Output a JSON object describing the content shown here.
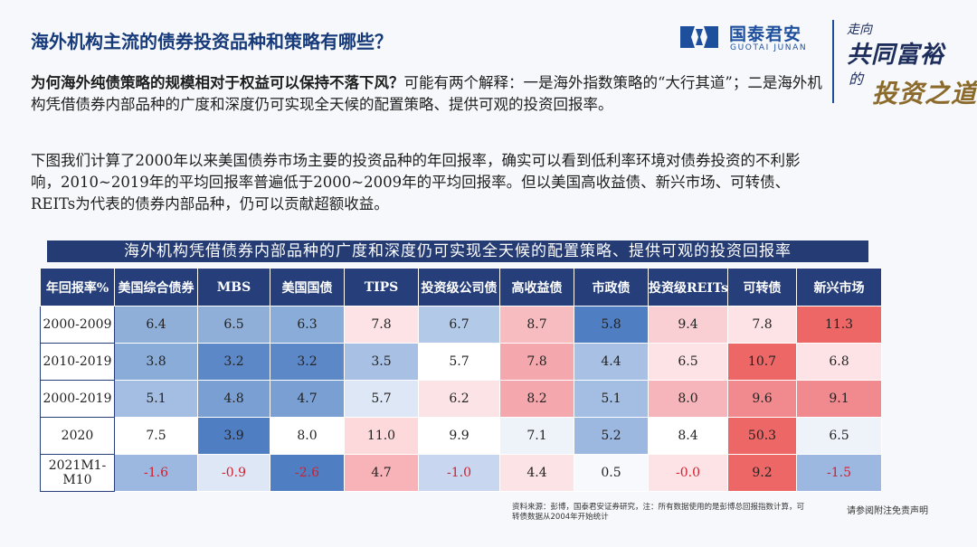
{
  "header": {
    "title": "海外机构主流的债券投资品种和策略有哪些？",
    "logo_cn": "国泰君安",
    "logo_en": "GUOTAI JUNAN",
    "brand_color": "#1e4f9c",
    "slogan": [
      "走向",
      "共同富裕",
      "的",
      "投资之道"
    ]
  },
  "body": {
    "para1_lead": "为何海外纯债策略的规模相对于权益可以保持不落下风？",
    "para1_rest": "可能有两个解释：一是海外指数策略的“大行其道”；二是海外机构凭借债券内部品种的广度和深度仍可实现全天候的配置策略、提供可观的投资回报率。",
    "para2": "下图我们计算了2000年以来美国债券市场主要的投资品种的年回报率，确实可以看到低利率环境对债券投资的不利影响，2010~2019年的平均回报率普遍低于2000~2009年的平均回报率。但以美国高收益债、新兴市场、可转债、REITs为代表的债券内部品种，仍可以贡献超额收益。"
  },
  "table": {
    "banner": "海外机构凭借债券内部品种的广度和深度仍可实现全天候的配置策略、提供可观的投资回报率",
    "headers": [
      "年回报率%",
      "美国综合债券",
      "MBS",
      "美国国债",
      "TIPS",
      "投资级公司债",
      "高收益债",
      "市政债",
      "投资级REITs",
      "可转债",
      "新兴市场"
    ],
    "rows": [
      {
        "label": "2000-2009",
        "values": [
          "6.4",
          "6.5",
          "6.3",
          "7.8",
          "6.7",
          "8.7",
          "5.8",
          "9.4",
          "7.8",
          "11.3"
        ],
        "colors": [
          "#8fafd9",
          "#8fafd9",
          "#8aacd8",
          "#fde3e6",
          "#b3c9e8",
          "#f7bcc0",
          "#4f7fc2",
          "#f9cfd3",
          "#fde3e6",
          "#ee6767"
        ]
      },
      {
        "label": "2010-2019",
        "values": [
          "3.8",
          "3.2",
          "3.2",
          "3.5",
          "5.7",
          "7.8",
          "4.4",
          "6.5",
          "10.7",
          "6.8"
        ],
        "colors": [
          "#8aacd8",
          "#5d88c8",
          "#5d88c8",
          "#a8c0e4",
          "#ffffff",
          "#f4a8ad",
          "#a8c0e4",
          "#fde3e6",
          "#ee6767",
          "#fde3e6"
        ]
      },
      {
        "label": "2000-2019",
        "values": [
          "5.1",
          "4.8",
          "4.7",
          "5.7",
          "6.2",
          "8.2",
          "5.1",
          "8.0",
          "9.6",
          "9.1"
        ],
        "colors": [
          "#a4bde3",
          "#7aa0d3",
          "#7aa0d3",
          "#dde7f5",
          "#fbe3e6",
          "#f4a8ad",
          "#a4bde3",
          "#f6b5ba",
          "#f08a8f",
          "#f08a8f"
        ]
      },
      {
        "label": "2020",
        "values": [
          "7.5",
          "3.9",
          "8.0",
          "11.0",
          "9.9",
          "7.1",
          "5.2",
          "8.4",
          "50.3",
          "6.5"
        ],
        "colors": [
          "#ffffff",
          "#4f7fc2",
          "#ffffff",
          "#fdd9dc",
          "#ffffff",
          "#eef3fa",
          "#9db8e0",
          "#ffffff",
          "#ee6767",
          "#eef3fa"
        ]
      },
      {
        "label": "2021M1-M10",
        "values": [
          "-1.6",
          "-0.9",
          "-2.6",
          "4.7",
          "-1.0",
          "4.4",
          "0.5",
          "-0.0",
          "9.2",
          "-1.5"
        ],
        "colors": [
          "#9db8e0",
          "#dde7f5",
          "#4f7fc2",
          "#f7b3b8",
          "#c8d7ef",
          "#fbe3e6",
          "#f7f9fc",
          "#fde3e6",
          "#ee6767",
          "#9db8e0"
        ]
      }
    ]
  },
  "footer": {
    "source": "资料来源：彭博，国泰君安证券研究，注：所有数据使用的是彭博总回报指数计算，可转债数据从2004年开始统计",
    "disclaimer": "请参阅附注免责声明"
  }
}
